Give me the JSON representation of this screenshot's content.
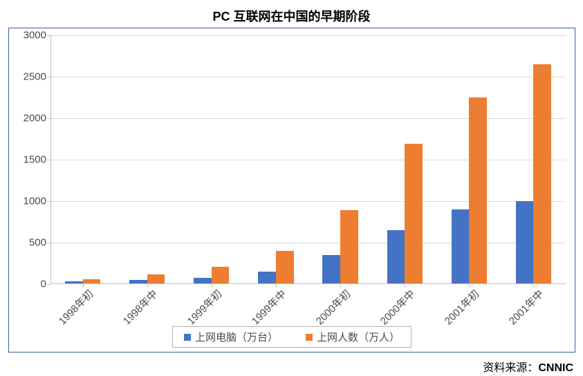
{
  "chart": {
    "type": "bar",
    "title": "PC 互联网在中国的早期阶段",
    "title_fontsize": 18,
    "title_fontweight": "bold",
    "categories": [
      "1998年初",
      "1998年中",
      "1999年初",
      "1999年中",
      "2000年初",
      "2000年中",
      "2001年初",
      "2001年中"
    ],
    "series": [
      {
        "name": "上网电脑（万台）",
        "color": "#4472c4",
        "values": [
          30,
          54,
          75,
          150,
          350,
          650,
          900,
          1000
        ]
      },
      {
        "name": "上网人数（万人）",
        "color": "#ed7d31",
        "values": [
          62,
          120,
          210,
          400,
          890,
          1690,
          2250,
          2650
        ]
      }
    ],
    "ylim": [
      0,
      3000
    ],
    "ytick_step": 500,
    "yticks": [
      0,
      500,
      1000,
      1500,
      2000,
      2500,
      3000
    ],
    "grid_color": "#d9d9d9",
    "axis_color": "#bfbfbf",
    "frame_color": "#3b5ba5",
    "background_color": "#ffffff",
    "label_fontsize": 15,
    "label_color": "#4a4a4a",
    "bar_gap_ratio": 0.0,
    "group_gap_ratio": 0.45,
    "xlabel_rotation": -45
  },
  "source": {
    "prefix": "资料来源：",
    "value": "CNNIC"
  }
}
